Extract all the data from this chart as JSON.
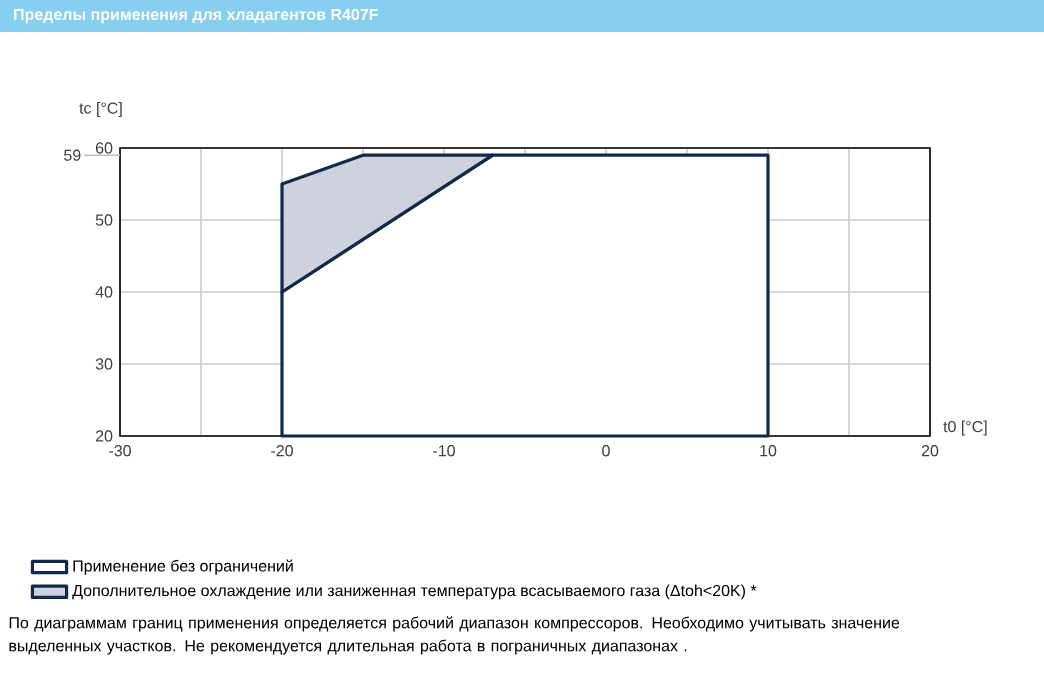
{
  "chart_data": {
    "type": "area",
    "title": "Пределы применения для хладагентов R407F",
    "xlabel": "t0 [°C]",
    "ylabel": "tc [°C]",
    "series": [
      {
        "name": "Применение без ограничений",
        "color": "#ffffff",
        "x": [
          -20,
          10,
          10,
          -7,
          -20,
          -20
        ],
        "values": [
          20,
          20,
          59,
          59,
          40,
          20
        ]
      },
      {
        "name": "Дополнительное охлаждение или заниженная температура всасываемого газа (Δtoh<20K) *",
        "color": "#cdd2de",
        "x": [
          -20,
          -20,
          -15,
          -7,
          -20
        ],
        "values": [
          40,
          55,
          59,
          59,
          40
        ]
      }
    ],
    "xlim": [
      -30,
      20
    ],
    "ylim": [
      20,
      60
    ],
    "xticks": [
      -30,
      {
        "value": -25,
        "label": null
      },
      -20,
      {
        "value": -15,
        "label": null
      },
      -10,
      {
        "value": -5,
        "label": null
      },
      0,
      {
        "value": 5,
        "label": null
      },
      10,
      {
        "value": 15,
        "label": null
      },
      20
    ],
    "yticks": [
      20,
      30,
      40,
      50,
      60
    ],
    "ref_lines": [
      {
        "axis": "y",
        "value": 59,
        "label": "59"
      }
    ],
    "grid": true,
    "legend": "bottom",
    "annotations": [
      "По диаграммам границ применения определяется рабочий диапазон компрессоров. Необходимо учитывать значение выделенных участков. Не рекомендуется длительная работа в пограничных диапазонах ."
    ]
  }
}
